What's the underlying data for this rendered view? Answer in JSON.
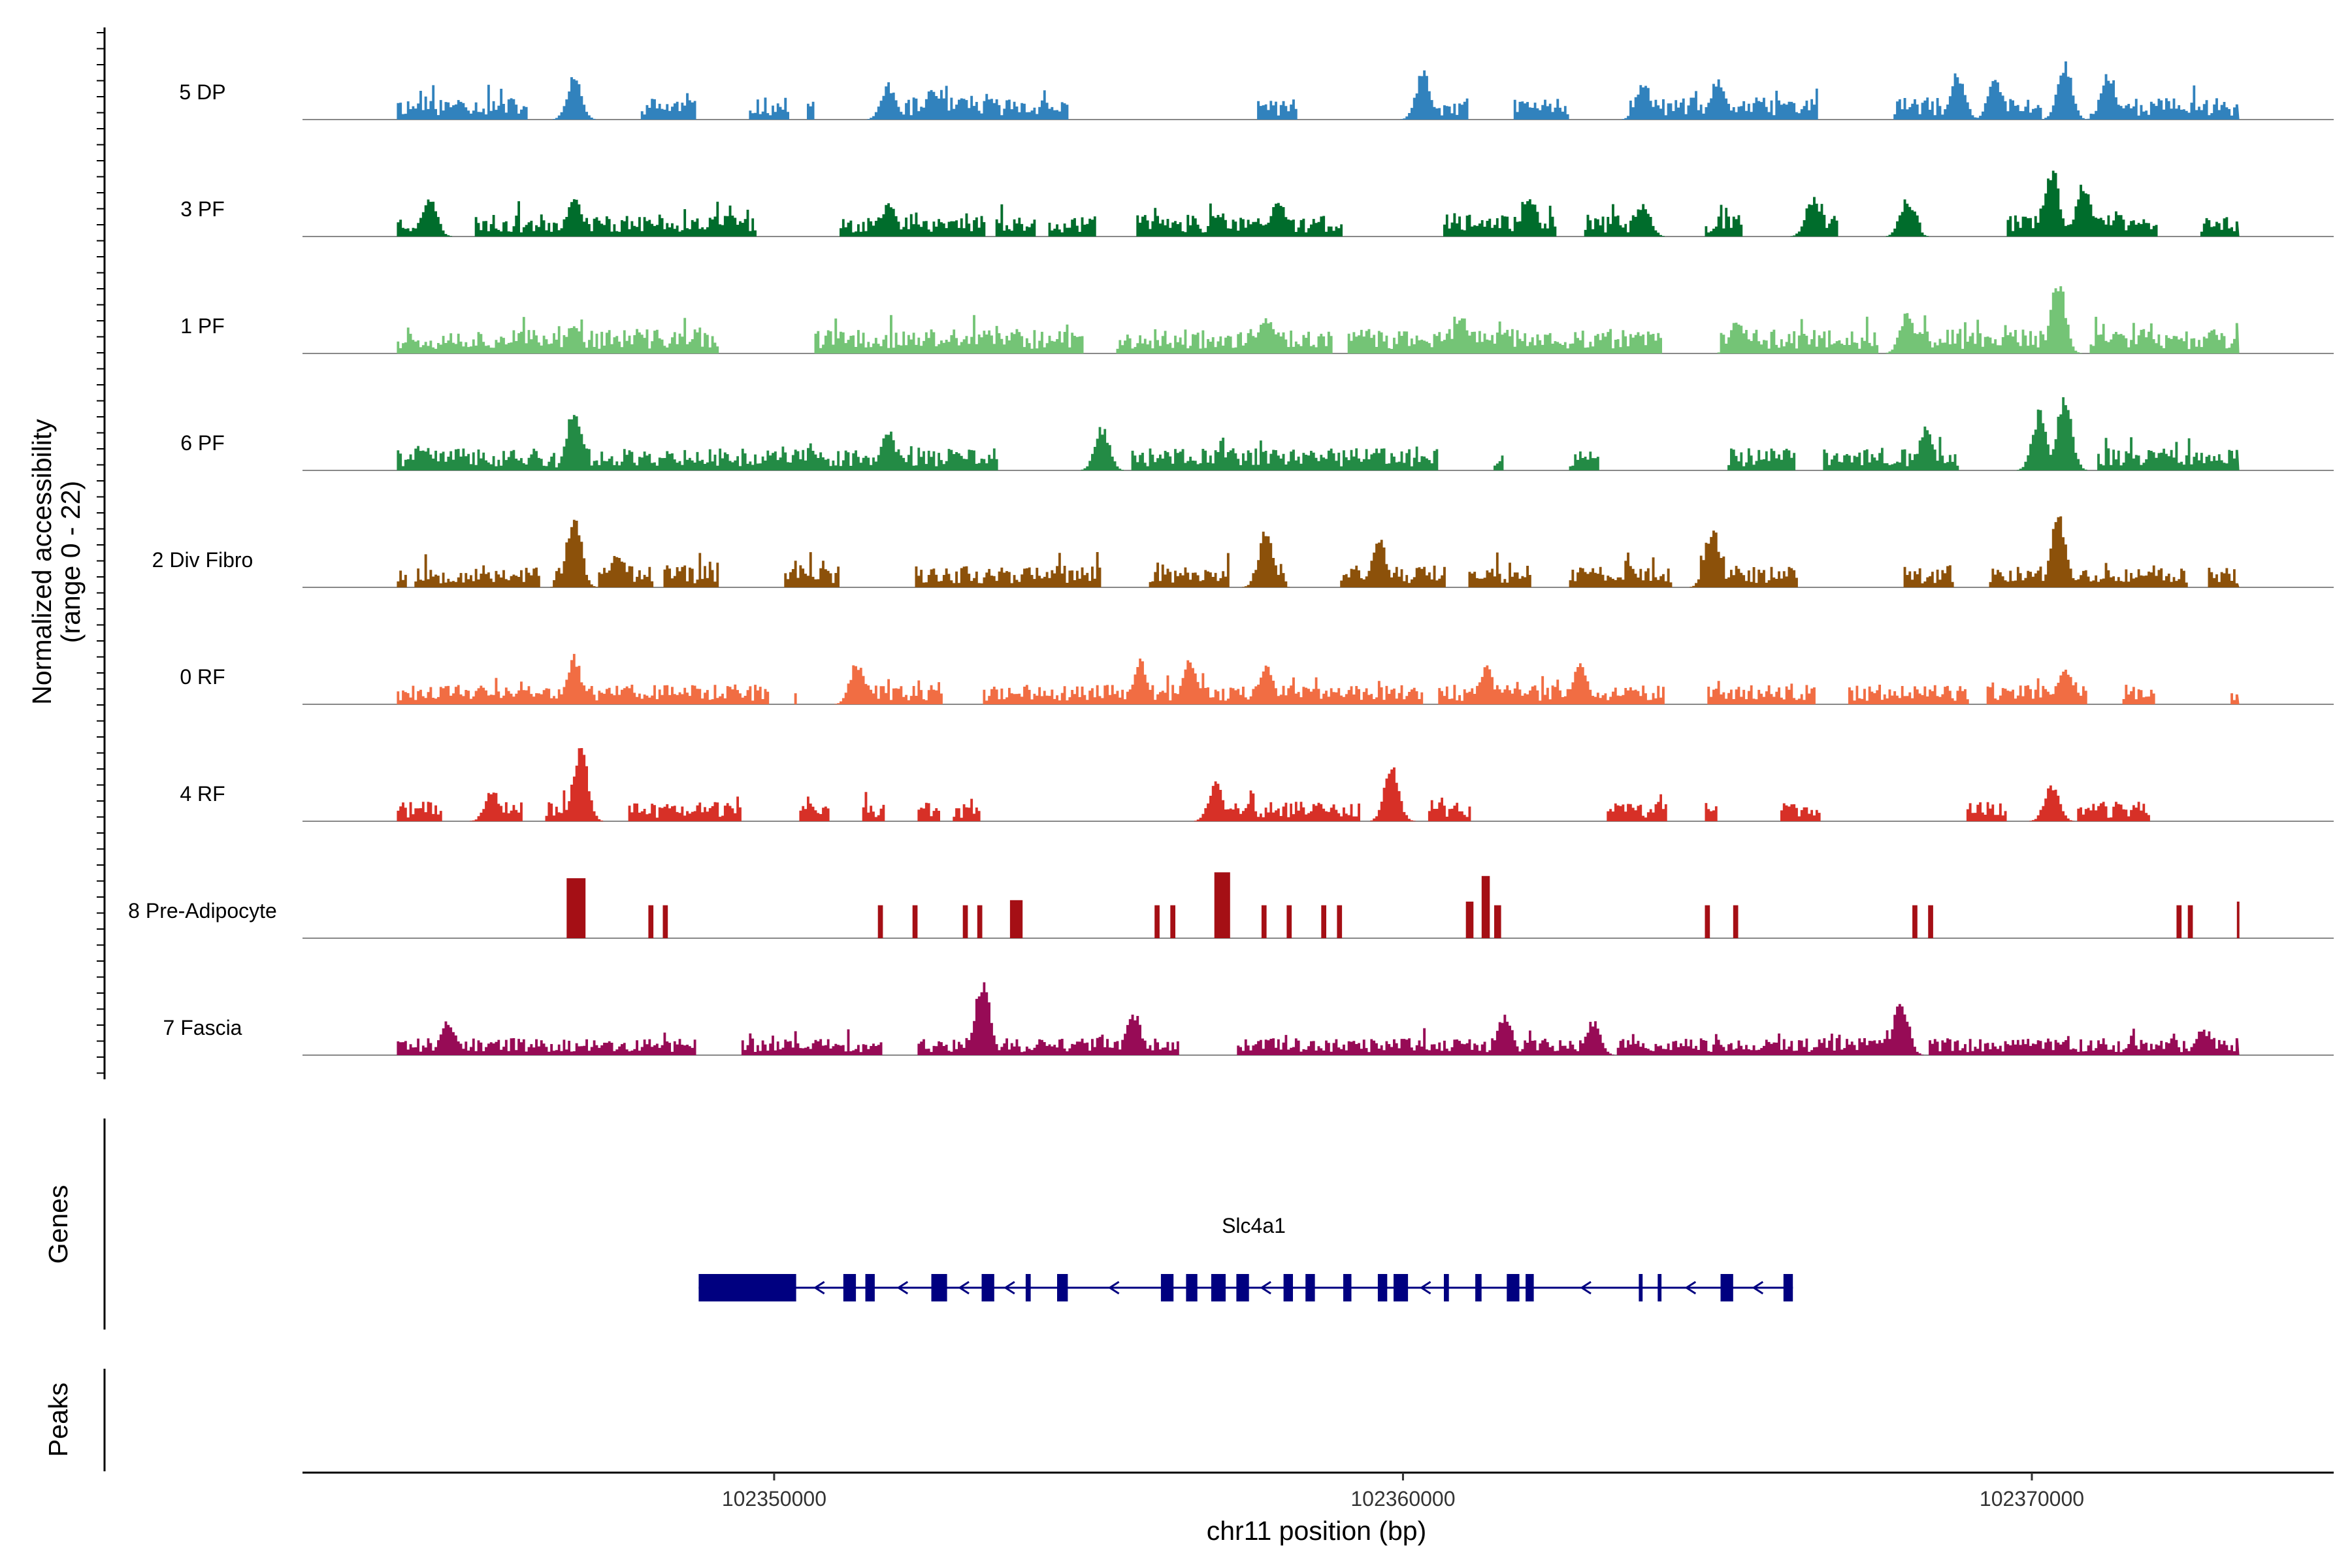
{
  "chart_data": {
    "type": "coverage",
    "xlabel": "chr11 position (bp)",
    "ylabel": "Normalized accessibility",
    "ylabel_range": "(range 0 - 22)",
    "xlim": [
      102342500,
      102374800
    ],
    "x_ticks": [
      102350000,
      102360000,
      102370000
    ],
    "x_tick_labels": [
      "102350000",
      "102360000",
      "102370000"
    ],
    "track_start": 102344000,
    "track_end": 102373300,
    "tracks": [
      {
        "name": "5 DP",
        "color": "#3182BD",
        "style": "sparse",
        "seed": 11,
        "density": 0.55,
        "scale": 0.45,
        "peaks": [
          [
            102345000,
            0.25
          ],
          [
            102346800,
            0.55
          ],
          [
            102351800,
            0.45
          ],
          [
            102352500,
            0.4
          ],
          [
            102360300,
            0.6
          ],
          [
            102363800,
            0.5
          ],
          [
            102365000,
            0.55
          ],
          [
            102368800,
            0.6
          ],
          [
            102369400,
            0.55
          ],
          [
            102370500,
            0.75
          ],
          [
            102371200,
            0.6
          ]
        ]
      },
      {
        "name": "3 PF",
        "color": "#006D2C",
        "style": "sparse",
        "seed": 23,
        "density": 0.62,
        "scale": 0.45,
        "peaks": [
          [
            102344500,
            0.55
          ],
          [
            102346800,
            0.5
          ],
          [
            102351800,
            0.45
          ],
          [
            102358000,
            0.5
          ],
          [
            102362000,
            0.55
          ],
          [
            102363800,
            0.45
          ],
          [
            102366500,
            0.5
          ],
          [
            102368000,
            0.5
          ],
          [
            102370300,
            0.9
          ],
          [
            102370800,
            0.7
          ]
        ]
      },
      {
        "name": "1 PF",
        "color": "#74C476",
        "style": "dense",
        "seed": 37,
        "density": 0.9,
        "scale": 0.5,
        "gaps": [
          [
            102349100,
            102350600
          ]
        ],
        "peaks": [
          [
            102346800,
            0.4
          ],
          [
            102357800,
            0.5
          ],
          [
            102360900,
            0.5
          ],
          [
            102365300,
            0.45
          ],
          [
            102368000,
            0.55
          ],
          [
            102370400,
            0.95
          ]
        ]
      },
      {
        "name": "6 PF",
        "color": "#238B45",
        "style": "sparse",
        "seed": 41,
        "density": 0.5,
        "scale": 0.45,
        "peaks": [
          [
            102346800,
            0.85
          ],
          [
            102351800,
            0.5
          ],
          [
            102355200,
            0.55
          ],
          [
            102368300,
            0.55
          ],
          [
            102370100,
            0.75
          ],
          [
            102370500,
            1.0
          ]
        ]
      },
      {
        "name": "2 Div Fibro",
        "color": "#8C510A",
        "style": "sparse",
        "seed": 53,
        "density": 0.72,
        "scale": 0.45,
        "peaks": [
          [
            102346800,
            0.95
          ],
          [
            102347500,
            0.45
          ],
          [
            102357800,
            0.75
          ],
          [
            102359600,
            0.65
          ],
          [
            102364900,
            0.8
          ],
          [
            102370400,
            0.9
          ]
        ]
      },
      {
        "name": "0 RF",
        "color": "#F16D43",
        "style": "dense",
        "seed": 61,
        "density": 0.8,
        "scale": 0.4,
        "gaps": [
          [
            102349900,
            102350300
          ]
        ],
        "peaks": [
          [
            102346800,
            0.6
          ],
          [
            102351300,
            0.55
          ],
          [
            102355800,
            0.55
          ],
          [
            102356600,
            0.6
          ],
          [
            102357800,
            0.55
          ],
          [
            102361300,
            0.5
          ],
          [
            102362800,
            0.5
          ],
          [
            102370500,
            0.5
          ]
        ]
      },
      {
        "name": "4 RF",
        "color": "#D73027",
        "style": "sparse",
        "seed": 71,
        "density": 0.58,
        "scale": 0.4,
        "peaks": [
          [
            102345500,
            0.4
          ],
          [
            102346900,
            1.0
          ],
          [
            102357000,
            0.5
          ],
          [
            102359800,
            0.7
          ],
          [
            102370300,
            0.5
          ]
        ]
      },
      {
        "name": "8 Pre-Adipocyte",
        "color": "#A50F15",
        "style": "blocks",
        "blocks": [
          [
            102346700,
            102347000,
            0.82
          ],
          [
            102348000,
            102348080,
            0.45
          ],
          [
            102348230,
            102348310,
            0.45
          ],
          [
            102351650,
            102351730,
            0.45
          ],
          [
            102352200,
            102352280,
            0.45
          ],
          [
            102353000,
            102353080,
            0.45
          ],
          [
            102353230,
            102353310,
            0.45
          ],
          [
            102353750,
            102353950,
            0.52
          ],
          [
            102356050,
            102356130,
            0.45
          ],
          [
            102356300,
            102356380,
            0.45
          ],
          [
            102357000,
            102357250,
            0.9
          ],
          [
            102357750,
            102357830,
            0.45
          ],
          [
            102358150,
            102358230,
            0.45
          ],
          [
            102358700,
            102358780,
            0.45
          ],
          [
            102358950,
            102359030,
            0.45
          ],
          [
            102361000,
            102361120,
            0.5
          ],
          [
            102361250,
            102361380,
            0.85
          ],
          [
            102361450,
            102361560,
            0.45
          ],
          [
            102364800,
            102364880,
            0.45
          ],
          [
            102365250,
            102365330,
            0.45
          ],
          [
            102368100,
            102368180,
            0.45
          ],
          [
            102368350,
            102368430,
            0.45
          ],
          [
            102372300,
            102372380,
            0.45
          ],
          [
            102372480,
            102372560,
            0.45
          ],
          [
            102373260,
            102373300,
            0.5
          ]
        ]
      },
      {
        "name": "7 Fascia",
        "color": "#970B56",
        "style": "dense",
        "seed": 89,
        "density": 0.82,
        "scale": 0.35,
        "peaks": [
          [
            102344800,
            0.45
          ],
          [
            102353300,
            1.0
          ],
          [
            102355700,
            0.55
          ],
          [
            102361600,
            0.55
          ],
          [
            102363000,
            0.45
          ],
          [
            102367900,
            0.75
          ],
          [
            102372700,
            0.35
          ]
        ]
      }
    ],
    "genes_label": "Genes",
    "peaks_label": "Peaks",
    "gene": {
      "name": "Slc4a1",
      "start": 102348800,
      "end": 102366200,
      "strand": "-",
      "color": "#000080",
      "exons": [
        [
          102348800,
          102350350
        ],
        [
          102351100,
          102351300
        ],
        [
          102351450,
          102351600
        ],
        [
          102352500,
          102352750
        ],
        [
          102353300,
          102353500
        ],
        [
          102354000,
          102354080
        ],
        [
          102354500,
          102354670
        ],
        [
          102356150,
          102356350
        ],
        [
          102356550,
          102356730
        ],
        [
          102356950,
          102357180
        ],
        [
          102357350,
          102357550
        ],
        [
          102358100,
          102358250
        ],
        [
          102358450,
          102358600
        ],
        [
          102359050,
          102359180
        ],
        [
          102359600,
          102359750
        ],
        [
          102359850,
          102360080
        ],
        [
          102360650,
          102360730
        ],
        [
          102361150,
          102361250
        ],
        [
          102361650,
          102361850
        ],
        [
          102361950,
          102362080
        ],
        [
          102363750,
          102363810
        ],
        [
          102364050,
          102364110
        ],
        [
          102365050,
          102365250
        ],
        [
          102366050,
          102366200
        ]
      ]
    }
  }
}
